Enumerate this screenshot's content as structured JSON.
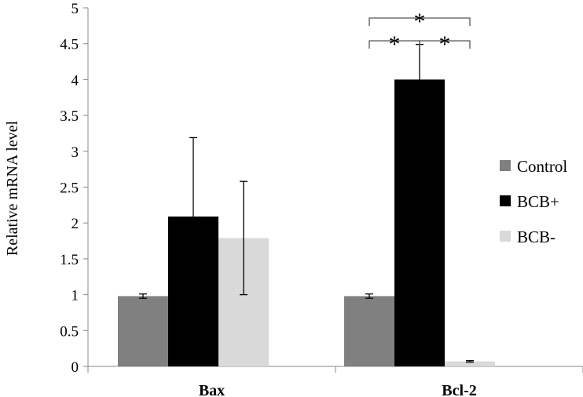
{
  "chart_data": {
    "type": "bar",
    "title": "",
    "xlabel": "",
    "ylabel": "Relative mRNA level",
    "ylim": [
      0,
      5
    ],
    "yticks": [
      "0",
      "0.5",
      "1",
      "1.5",
      "2",
      "2.5",
      "3",
      "3.5",
      "4",
      "4.5",
      "5"
    ],
    "grid": false,
    "legend_position": "right",
    "categories": [
      "Bax",
      "Bcl-2"
    ],
    "series": [
      {
        "name": "Control",
        "color": "#808080",
        "values": [
          0.98,
          0.98
        ],
        "errors": [
          0.03,
          0.03
        ]
      },
      {
        "name": "BCB+",
        "color": "#000000",
        "values": [
          2.09,
          4.0
        ],
        "errors": [
          1.1,
          0.49
        ]
      },
      {
        "name": "BCB-",
        "color": "#d9d9d9",
        "values": [
          1.79,
          0.07
        ],
        "errors": [
          0.79,
          0.01
        ]
      }
    ],
    "annotations": {
      "significance": [
        {
          "category": "Bcl-2",
          "from_series": "Control",
          "to_series": "BCB+",
          "label": "*"
        },
        {
          "category": "Bcl-2",
          "from_series": "BCB+",
          "to_series": "BCB-",
          "label": "*"
        },
        {
          "category": "Bcl-2",
          "from_series": "Control",
          "to_series": "BCB-",
          "label": "*"
        }
      ]
    }
  }
}
